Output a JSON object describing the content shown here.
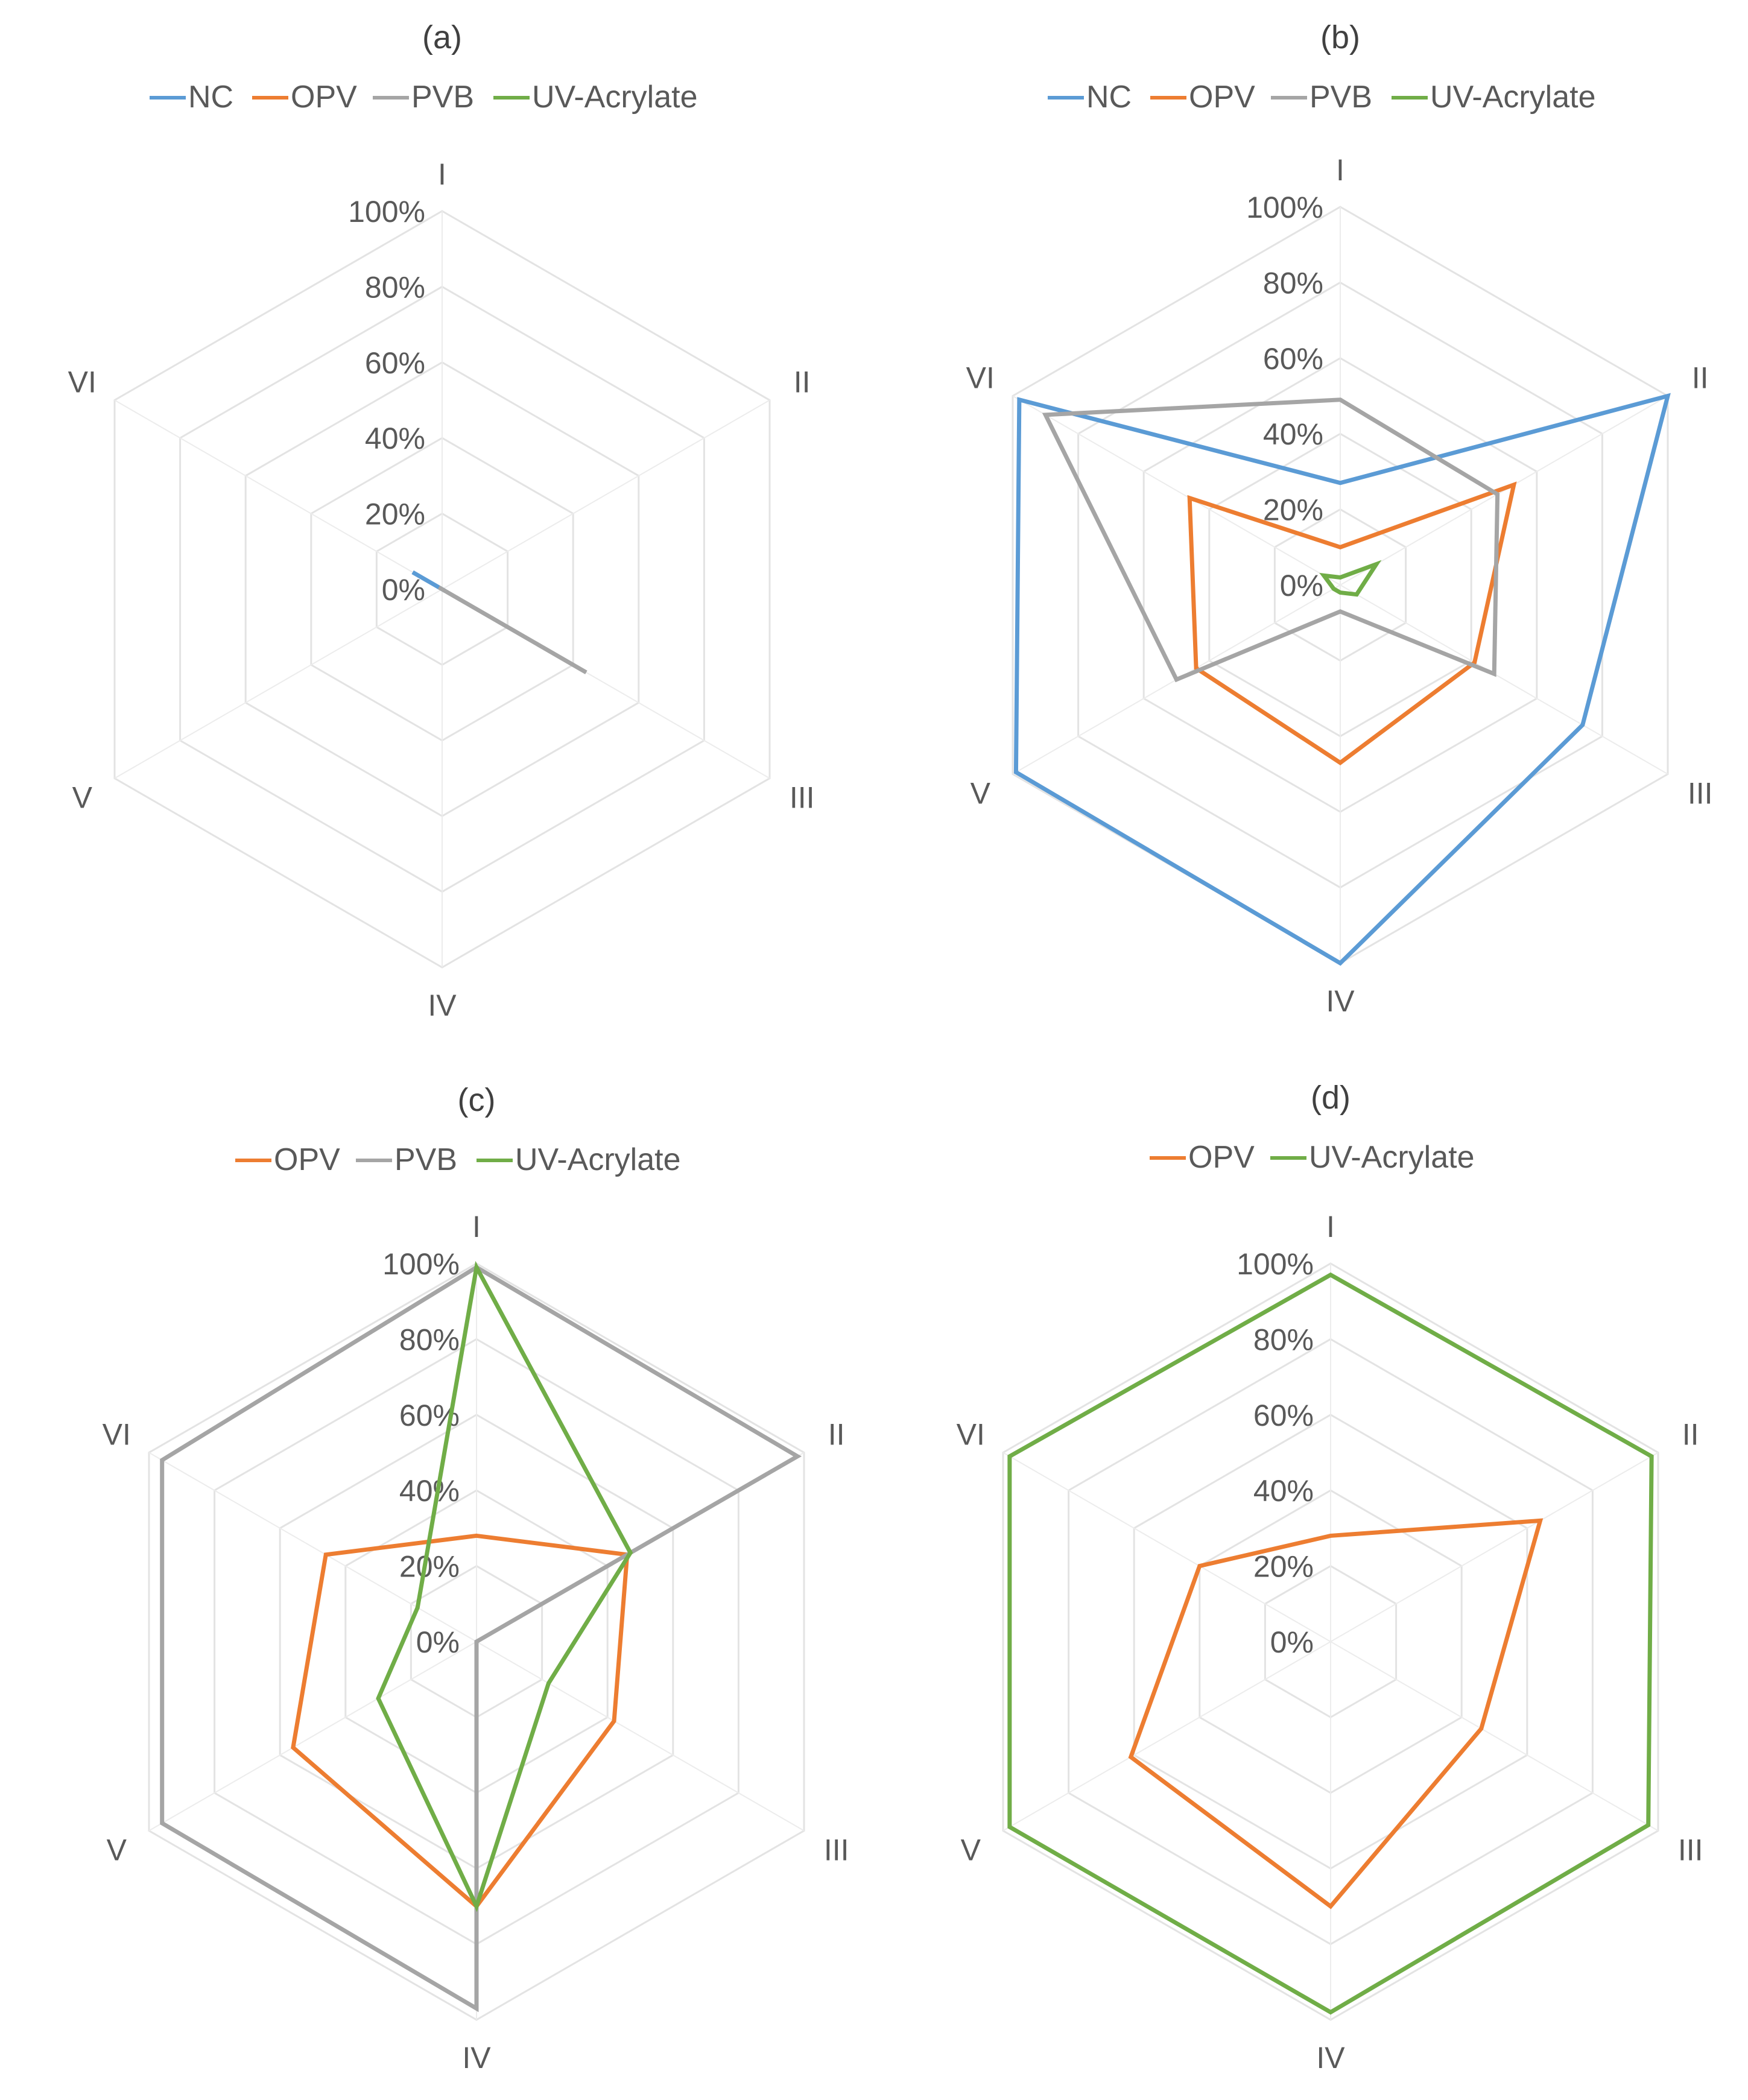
{
  "colors": {
    "NC": "#5b9bd5",
    "OPV": "#ed7d31",
    "PVB": "#a5a5a5",
    "UV-Acrylate": "#70ad47"
  },
  "chart_data": [
    {
      "type": "radar",
      "title": "(a)",
      "categories": [
        "I",
        "II",
        "III",
        "IV",
        "V",
        "VI"
      ],
      "ticks": [
        "0%",
        "20%",
        "40%",
        "60%",
        "80%",
        "100%"
      ],
      "rlim": [
        0,
        100
      ],
      "legend_position": "top",
      "series": [
        {
          "name": "NC",
          "values": [
            0,
            0,
            1,
            0,
            0,
            9
          ]
        },
        {
          "name": "OPV",
          "values": [
            0,
            0,
            0,
            0,
            0,
            0
          ]
        },
        {
          "name": "PVB",
          "values": [
            0,
            0,
            44,
            0,
            0,
            1
          ]
        },
        {
          "name": "UV-Acrylate",
          "values": [
            0,
            0,
            0,
            0,
            0,
            0
          ]
        }
      ]
    },
    {
      "type": "radar",
      "title": "(b)",
      "categories": [
        "I",
        "II",
        "III",
        "IV",
        "V",
        "VI"
      ],
      "ticks": [
        "0%",
        "20%",
        "40%",
        "60%",
        "80%",
        "100%"
      ],
      "rlim": [
        0,
        100
      ],
      "legend_position": "top",
      "series": [
        {
          "name": "NC",
          "values": [
            27,
            100,
            74,
            100,
            99,
            98
          ]
        },
        {
          "name": "OPV",
          "values": [
            10,
            53,
            41,
            47,
            44,
            46
          ]
        },
        {
          "name": "PVB",
          "values": [
            49,
            48,
            47,
            7,
            50,
            90
          ]
        },
        {
          "name": "UV-Acrylate",
          "values": [
            2,
            11,
            5,
            2,
            2,
            5
          ]
        }
      ]
    },
    {
      "type": "radar",
      "title": "(c)",
      "categories": [
        "I",
        "II",
        "III",
        "IV",
        "V",
        "VI"
      ],
      "ticks": [
        "0%",
        "20%",
        "40%",
        "60%",
        "80%",
        "100%"
      ],
      "rlim": [
        0,
        100
      ],
      "legend_position": "top",
      "series": [
        {
          "name": "OPV",
          "values": [
            28,
            46,
            42,
            70,
            56,
            46
          ]
        },
        {
          "name": "PVB",
          "values": [
            99,
            98,
            0,
            97,
            96,
            96
          ]
        },
        {
          "name": "UV-Acrylate",
          "values": [
            99,
            47,
            22,
            70,
            30,
            18
          ]
        }
      ]
    },
    {
      "type": "radar",
      "title": "(d)",
      "categories": [
        "I",
        "II",
        "III",
        "IV",
        "V",
        "VI"
      ],
      "ticks": [
        "0%",
        "20%",
        "40%",
        "60%",
        "80%",
        "100%"
      ],
      "rlim": [
        0,
        100
      ],
      "legend_position": "top",
      "series": [
        {
          "name": "OPV",
          "values": [
            28,
            64,
            46,
            70,
            61,
            40
          ]
        },
        {
          "name": "UV-Acrylate",
          "values": [
            97,
            98,
            97,
            98,
            98,
            98
          ]
        }
      ]
    }
  ]
}
